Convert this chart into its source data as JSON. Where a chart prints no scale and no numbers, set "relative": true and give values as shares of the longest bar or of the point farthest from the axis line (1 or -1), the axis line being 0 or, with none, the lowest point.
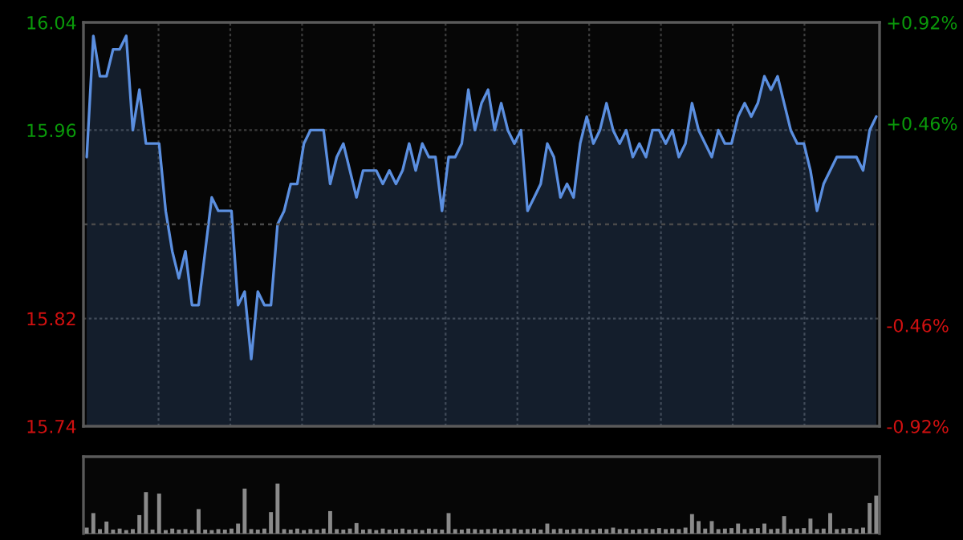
{
  "chart_data": [
    {
      "type": "area",
      "categories": [
        null,
        null,
        null,
        null,
        null,
        null,
        null,
        null,
        null,
        null,
        null,
        null,
        null,
        null,
        null,
        null,
        null,
        null,
        null,
        null,
        null,
        null,
        null,
        null,
        null,
        null,
        null,
        null,
        null,
        null,
        null,
        null,
        null,
        null,
        null,
        null,
        null,
        null,
        null,
        null,
        null,
        null,
        null,
        null,
        null,
        null,
        null,
        null,
        null,
        null,
        null,
        null,
        null,
        null,
        null,
        null,
        null,
        null,
        null,
        null,
        null,
        null,
        null,
        null,
        null,
        null,
        null,
        null,
        null,
        null,
        null,
        null,
        null,
        null,
        null,
        null,
        null,
        null,
        null,
        null,
        null,
        null,
        null,
        null,
        null,
        null,
        null,
        null,
        null,
        null,
        null,
        null,
        null,
        null,
        null,
        null,
        null,
        null,
        null,
        null,
        null,
        null,
        null,
        null,
        null,
        null,
        null,
        null,
        null,
        null,
        null,
        null,
        null,
        null,
        null,
        null,
        null,
        null,
        null,
        null,
        null
      ],
      "series": [
        {
          "color": "#5b8fe0",
          "values": [
            15.94,
            16.03,
            16.0,
            16.0,
            16.02,
            16.02,
            16.03,
            15.96,
            15.99,
            15.95,
            15.95,
            15.95,
            15.9,
            15.87,
            15.85,
            15.87,
            15.83,
            15.83,
            15.87,
            15.91,
            15.9,
            15.9,
            15.9,
            15.83,
            15.84,
            15.79,
            15.84,
            15.83,
            15.83,
            15.89,
            15.9,
            15.92,
            15.92,
            15.95,
            15.96,
            15.96,
            15.96,
            15.92,
            15.94,
            15.95,
            15.93,
            15.91,
            15.93,
            15.93,
            15.93,
            15.92,
            15.93,
            15.92,
            15.93,
            15.95,
            15.93,
            15.95,
            15.94,
            15.94,
            15.9,
            15.94,
            15.94,
            15.95,
            15.99,
            15.96,
            15.98,
            15.99,
            15.96,
            15.98,
            15.96,
            15.95,
            15.96,
            15.9,
            15.91,
            15.92,
            15.95,
            15.94,
            15.91,
            15.92,
            15.91,
            15.95,
            15.97,
            15.95,
            15.96,
            15.98,
            15.96,
            15.95,
            15.96,
            15.94,
            15.95,
            15.94,
            15.96,
            15.96,
            15.95,
            15.96,
            15.94,
            15.95,
            15.98,
            15.96,
            15.95,
            15.94,
            15.96,
            15.95,
            15.95,
            15.97,
            15.98,
            15.97,
            15.98,
            16.0,
            15.99,
            16.0,
            15.98,
            15.96,
            15.95,
            15.95,
            15.93,
            15.9,
            15.92,
            15.93,
            15.94,
            15.94,
            15.94,
            15.94,
            15.93,
            15.96,
            15.97
          ]
        }
      ],
      "ylim": [
        15.74,
        16.04
      ],
      "yticks": [
        {
          "value": 15.74,
          "label": "15.74"
        },
        {
          "value": 15.82,
          "label": "15.82"
        },
        {
          "value": 15.96,
          "label": "15.96"
        },
        {
          "value": 16.04,
          "label": "16.04"
        }
      ],
      "y2lim": [
        -0.92,
        0.92
      ],
      "y2ticks": [
        {
          "value": -0.92,
          "label": "-0.92%"
        },
        {
          "value": -0.46,
          "label": "-0.46%"
        },
        {
          "value": 0.46,
          "label": "+0.46%"
        },
        {
          "value": 0.92,
          "label": "+0.92%"
        }
      ],
      "ref_lines": [
        {
          "axis": "y",
          "value": 15.89,
          "line_style": "dashed"
        }
      ],
      "grid": true
    },
    {
      "type": "bar",
      "relative": true,
      "color": "#8a8a8a",
      "categories": [
        null,
        null,
        null,
        null,
        null,
        null,
        null,
        null,
        null,
        null,
        null,
        null,
        null,
        null,
        null,
        null,
        null,
        null,
        null,
        null,
        null,
        null,
        null,
        null,
        null,
        null,
        null,
        null,
        null,
        null,
        null,
        null,
        null,
        null,
        null,
        null,
        null,
        null,
        null,
        null,
        null,
        null,
        null,
        null,
        null,
        null,
        null,
        null,
        null,
        null,
        null,
        null,
        null,
        null,
        null,
        null,
        null,
        null,
        null,
        null,
        null,
        null,
        null,
        null,
        null,
        null,
        null,
        null,
        null,
        null,
        null,
        null,
        null,
        null,
        null,
        null,
        null,
        null,
        null,
        null,
        null,
        null,
        null,
        null,
        null,
        null,
        null,
        null,
        null,
        null,
        null,
        null,
        null,
        null,
        null,
        null,
        null,
        null,
        null,
        null,
        null,
        null,
        null,
        null,
        null,
        null,
        null,
        null,
        null,
        null,
        null,
        null,
        null,
        null,
        null,
        null,
        null,
        null,
        null,
        null,
        null
      ],
      "values": [
        0.12,
        0.41,
        0.09,
        0.24,
        0.08,
        0.1,
        0.07,
        0.09,
        0.37,
        0.83,
        0.08,
        0.8,
        0.07,
        0.1,
        0.08,
        0.09,
        0.07,
        0.49,
        0.08,
        0.07,
        0.09,
        0.08,
        0.1,
        0.2,
        0.9,
        0.09,
        0.08,
        0.1,
        0.43,
        1.0,
        0.09,
        0.08,
        0.1,
        0.07,
        0.09,
        0.08,
        0.1,
        0.45,
        0.09,
        0.08,
        0.1,
        0.21,
        0.08,
        0.09,
        0.07,
        0.1,
        0.08,
        0.09,
        0.1,
        0.08,
        0.09,
        0.07,
        0.1,
        0.09,
        0.08,
        0.41,
        0.09,
        0.08,
        0.1,
        0.09,
        0.08,
        0.09,
        0.1,
        0.08,
        0.09,
        0.1,
        0.08,
        0.09,
        0.1,
        0.08,
        0.2,
        0.09,
        0.1,
        0.08,
        0.09,
        0.1,
        0.09,
        0.08,
        0.1,
        0.09,
        0.12,
        0.09,
        0.1,
        0.08,
        0.09,
        0.1,
        0.09,
        0.11,
        0.09,
        0.1,
        0.09,
        0.12,
        0.39,
        0.25,
        0.1,
        0.25,
        0.09,
        0.1,
        0.11,
        0.2,
        0.09,
        0.1,
        0.11,
        0.2,
        0.09,
        0.1,
        0.35,
        0.09,
        0.1,
        0.11,
        0.3,
        0.09,
        0.1,
        0.41,
        0.09,
        0.1,
        0.11,
        0.09,
        0.12,
        0.61,
        0.76
      ]
    }
  ]
}
